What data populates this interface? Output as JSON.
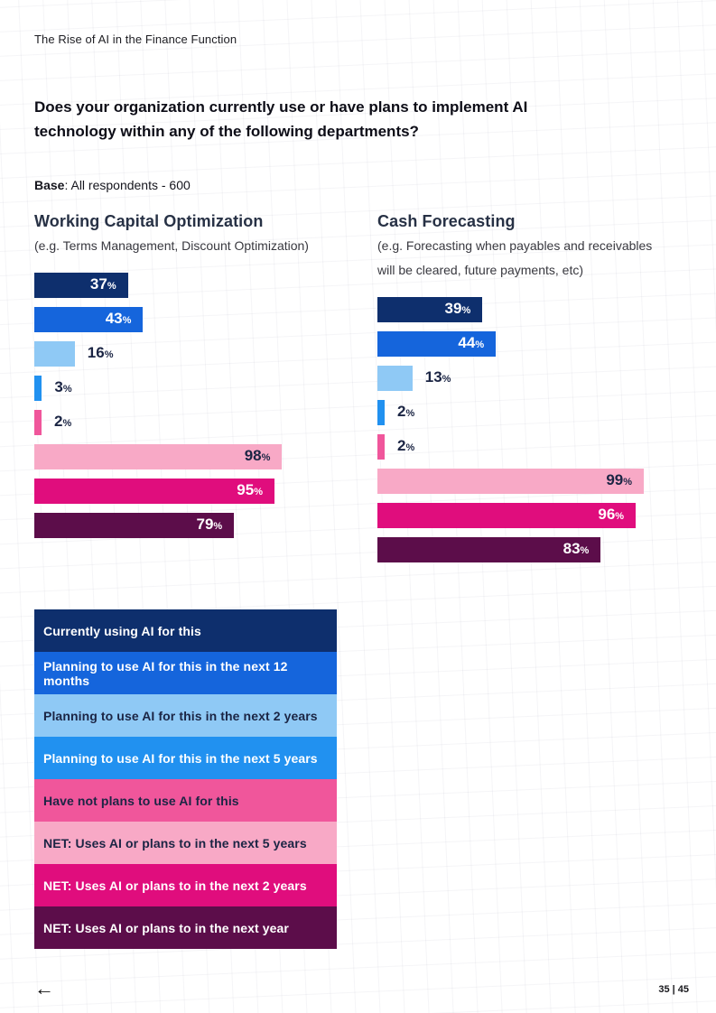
{
  "header": {
    "title": "The Rise of AI in the Finance Function"
  },
  "question": {
    "text": "Does your organization currently use or have plans to implement AI technology within any of the following departments?"
  },
  "base": {
    "label": "Base",
    "text": ": All respondents - 600"
  },
  "colors": {
    "navy": "#0E2F6D",
    "blue": "#1565DC",
    "light_blue": "#8FC9F5",
    "bright_blue": "#2191F0",
    "pink": "#F0569B",
    "light_pink": "#F8A9C6",
    "magenta": "#E00D7D",
    "maroon": "#5C0D4A"
  },
  "chart_data": [
    {
      "type": "bar",
      "orientation": "horizontal",
      "title": "Working Capital Optimization",
      "subtitle": "(e.g. Terms Management, Discount Optimization)",
      "unit": "%",
      "xlim": [
        0,
        100
      ],
      "grid": false,
      "categories": [
        "Currently using AI for this",
        "Planning to use AI for this in the next 12 months",
        "Planning to use AI for this in the next 2 years",
        "Planning to use AI for this in the next 5 years",
        "Have not plans to use AI for this",
        "NET: Uses AI or plans to in the next 5 years",
        "NET: Uses AI or plans to in the next 2 years",
        "NET: Uses AI or plans to in the next year"
      ],
      "values": [
        37,
        43,
        16,
        3,
        2,
        98,
        95,
        79
      ],
      "bar_colors": [
        "navy",
        "blue",
        "light_blue",
        "bright_blue",
        "pink",
        "light_pink",
        "magenta",
        "maroon"
      ]
    },
    {
      "type": "bar",
      "orientation": "horizontal",
      "title": "Cash Forecasting",
      "subtitle": "(e.g. Forecasting when payables and receivables will be cleared, future payments, etc)",
      "unit": "%",
      "xlim": [
        0,
        100
      ],
      "grid": false,
      "categories": [
        "Currently using AI for this",
        "Planning to use AI for this in the next 12 months",
        "Planning to use AI for this in the next 2 years",
        "Planning to use AI for this in the next 5 years",
        "Have not plans to use AI for this",
        "NET: Uses AI or plans to in the next 5 years",
        "NET: Uses AI or plans to in the next 2 years",
        "NET: Uses AI or plans to in the next year"
      ],
      "values": [
        39,
        44,
        13,
        2,
        2,
        99,
        96,
        83
      ],
      "bar_colors": [
        "navy",
        "blue",
        "light_blue",
        "bright_blue",
        "pink",
        "light_pink",
        "magenta",
        "maroon"
      ]
    }
  ],
  "legend": {
    "position": "bottom-left",
    "items": [
      {
        "label": "Currently using AI for this",
        "color": "navy"
      },
      {
        "label": "Planning to use AI for this in the next 12 months",
        "color": "blue"
      },
      {
        "label": "Planning to use AI for this in the next 2 years",
        "color": "light_blue"
      },
      {
        "label": "Planning to use AI for this in the next 5 years",
        "color": "bright_blue"
      },
      {
        "label": "Have not plans to use AI for this",
        "color": "pink"
      },
      {
        "label": "NET: Uses AI or plans to in the next 5 years",
        "color": "light_pink"
      },
      {
        "label": "NET: Uses AI or plans to in the next 2 years",
        "color": "magenta"
      },
      {
        "label": "NET: Uses AI or plans to in the next year",
        "color": "maroon"
      }
    ]
  },
  "footer": {
    "back_arrow": "←",
    "page_number": "35 | 45"
  }
}
